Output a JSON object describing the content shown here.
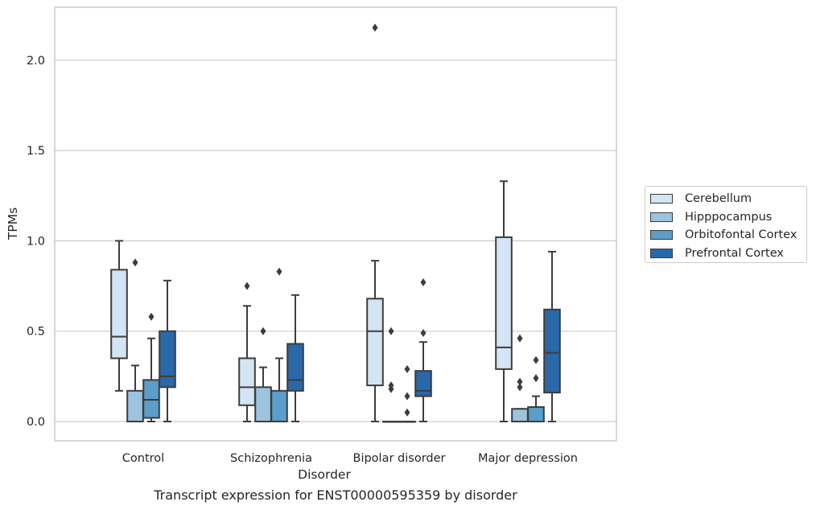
{
  "chart_data": {
    "type": "box",
    "title": "Transcript expression for ENST00000595359 by disorder",
    "xlabel": "Disorder",
    "ylabel": "TPMs",
    "ylim": [
      -0.105,
      2.3
    ],
    "yticks": [
      "0.0",
      "0.5",
      "1.0",
      "1.5",
      "2.0"
    ],
    "grid": "horizontal",
    "legend_position": "right",
    "categories": [
      "Control",
      "Schizophrenia",
      "Bipolar disorder",
      "Major depression"
    ],
    "series": [
      {
        "name": "Cerebellum",
        "color": "#d4e4f3",
        "boxes": [
          {
            "q1": 0.35,
            "median": 0.47,
            "q3": 0.84,
            "whisker_low": 0.17,
            "whisker_high": 1.0,
            "outliers": []
          },
          {
            "q1": 0.09,
            "median": 0.19,
            "q3": 0.35,
            "whisker_low": 0.0,
            "whisker_high": 0.64,
            "outliers": [
              0.75
            ]
          },
          {
            "q1": 0.2,
            "median": 0.5,
            "q3": 0.68,
            "whisker_low": 0.0,
            "whisker_high": 0.89,
            "outliers": [
              2.18
            ]
          },
          {
            "q1": 0.29,
            "median": 0.41,
            "q3": 1.02,
            "whisker_low": 0.0,
            "whisker_high": 1.33,
            "outliers": []
          }
        ]
      },
      {
        "name": "Hipppocampus",
        "color": "#9cc4de",
        "boxes": [
          {
            "q1": 0.0,
            "median": 0.0,
            "q3": 0.17,
            "whisker_low": 0.0,
            "whisker_high": 0.31,
            "outliers": [
              0.88
            ]
          },
          {
            "q1": 0.0,
            "median": 0.0,
            "q3": 0.19,
            "whisker_low": 0.0,
            "whisker_high": 0.3,
            "outliers": [
              0.5
            ]
          },
          {
            "q1": 0.0,
            "median": 0.0,
            "q3": 0.0,
            "whisker_low": 0.0,
            "whisker_high": 0.0,
            "outliers": [
              0.5,
              0.2,
              0.18
            ]
          },
          {
            "q1": 0.0,
            "median": 0.0,
            "q3": 0.07,
            "whisker_low": 0.0,
            "whisker_high": 0.07,
            "outliers": [
              0.46,
              0.22,
              0.19
            ]
          }
        ]
      },
      {
        "name": "Orbitofontal Cortex",
        "color": "#5b9dcb",
        "boxes": [
          {
            "q1": 0.02,
            "median": 0.12,
            "q3": 0.23,
            "whisker_low": 0.0,
            "whisker_high": 0.46,
            "outliers": [
              0.58
            ]
          },
          {
            "q1": 0.0,
            "median": 0.0,
            "q3": 0.17,
            "whisker_low": 0.0,
            "whisker_high": 0.35,
            "outliers": [
              0.83
            ]
          },
          {
            "q1": 0.0,
            "median": 0.0,
            "q3": 0.0,
            "whisker_low": 0.0,
            "whisker_high": 0.0,
            "outliers": [
              0.29,
              0.14,
              0.05
            ]
          },
          {
            "q1": 0.0,
            "median": 0.0,
            "q3": 0.08,
            "whisker_low": 0.0,
            "whisker_high": 0.14,
            "outliers": [
              0.34,
              0.24
            ]
          }
        ]
      },
      {
        "name": "Prefrontal Cortex",
        "color": "#2968a9",
        "boxes": [
          {
            "q1": 0.19,
            "median": 0.25,
            "q3": 0.5,
            "whisker_low": 0.0,
            "whisker_high": 0.78,
            "outliers": []
          },
          {
            "q1": 0.17,
            "median": 0.23,
            "q3": 0.43,
            "whisker_low": 0.0,
            "whisker_high": 0.7,
            "outliers": []
          },
          {
            "q1": 0.14,
            "median": 0.17,
            "q3": 0.28,
            "whisker_low": 0.0,
            "whisker_high": 0.44,
            "outliers": [
              0.77,
              0.49
            ]
          },
          {
            "q1": 0.16,
            "median": 0.38,
            "q3": 0.62,
            "whisker_low": 0.0,
            "whisker_high": 0.94,
            "outliers": []
          }
        ]
      }
    ]
  }
}
